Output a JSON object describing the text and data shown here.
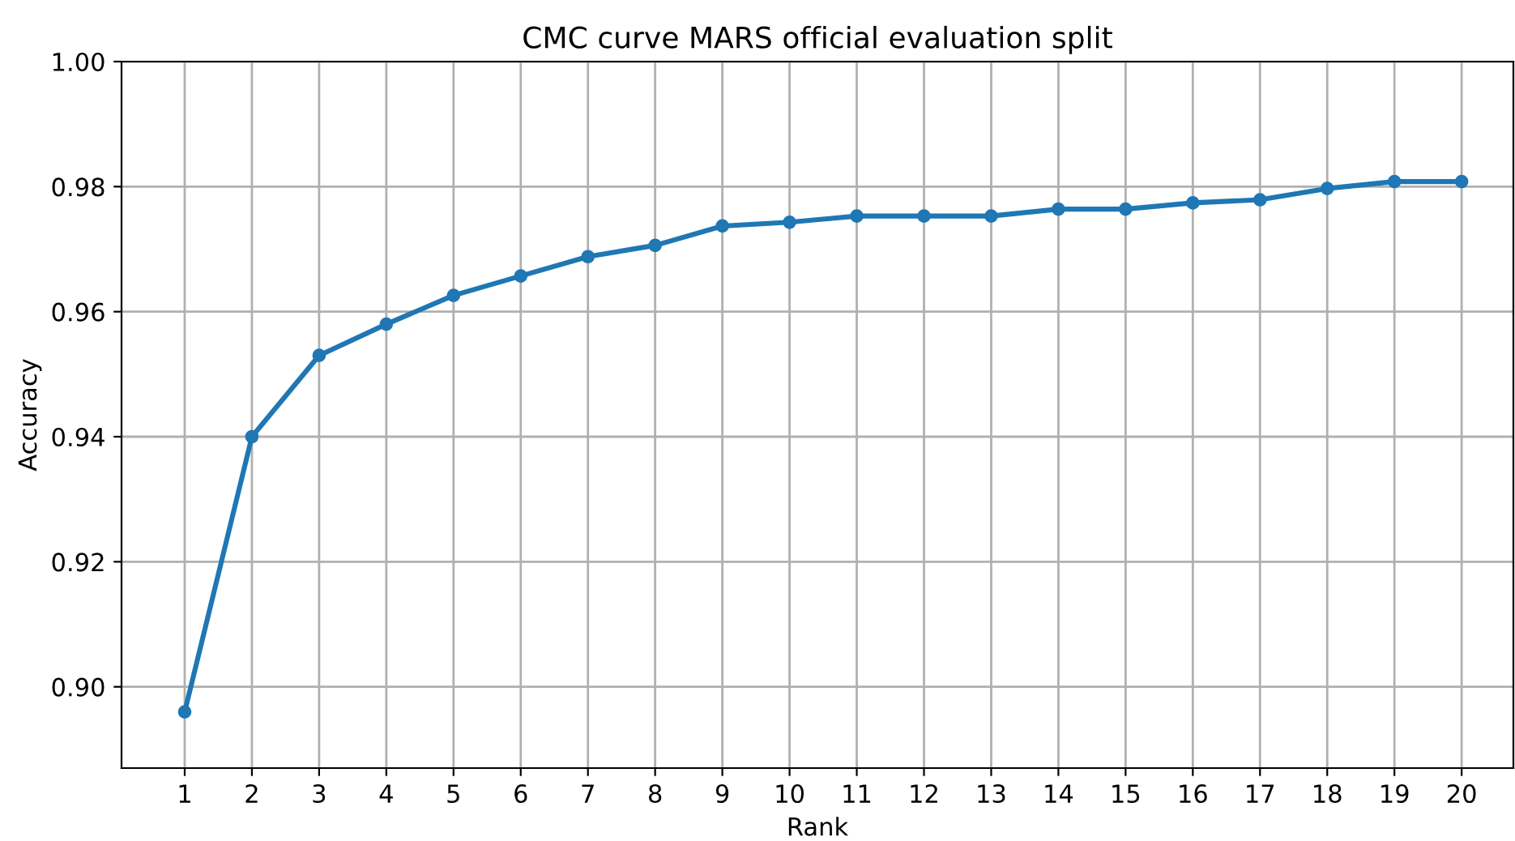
{
  "chart_data": {
    "type": "line",
    "title": "CMC curve MARS official evaluation split",
    "xlabel": "Rank",
    "ylabel": "Accuracy",
    "x": [
      1,
      2,
      3,
      4,
      5,
      6,
      7,
      8,
      9,
      10,
      11,
      12,
      13,
      14,
      15,
      16,
      17,
      18,
      19,
      20
    ],
    "series": [
      {
        "color": "#1f77b4",
        "values": [
          0.896,
          0.94,
          0.953,
          0.958,
          0.9626,
          0.9657,
          0.9688,
          0.9706,
          0.9737,
          0.9743,
          0.9753,
          0.9753,
          0.9753,
          0.9764,
          0.9764,
          0.9774,
          0.9779,
          0.9797,
          0.9808,
          0.9808
        ]
      }
    ],
    "xlim": [
      0.06,
      20.77
    ],
    "xticks": [
      1,
      2,
      3,
      4,
      5,
      6,
      7,
      8,
      9,
      10,
      11,
      12,
      13,
      14,
      15,
      16,
      17,
      18,
      19,
      20
    ],
    "ylim": [
      0.887,
      1.0
    ],
    "yticks": [
      {
        "value": 0.9,
        "label": "0.90"
      },
      {
        "value": 0.92,
        "label": "0.92"
      },
      {
        "value": 0.94,
        "label": "0.94"
      },
      {
        "value": 0.96,
        "label": "0.96"
      },
      {
        "value": 0.98,
        "label": "0.98"
      },
      {
        "value": 1.0,
        "label": "1.00"
      }
    ],
    "grid": true,
    "marker": "circle",
    "line_style": "solid"
  }
}
